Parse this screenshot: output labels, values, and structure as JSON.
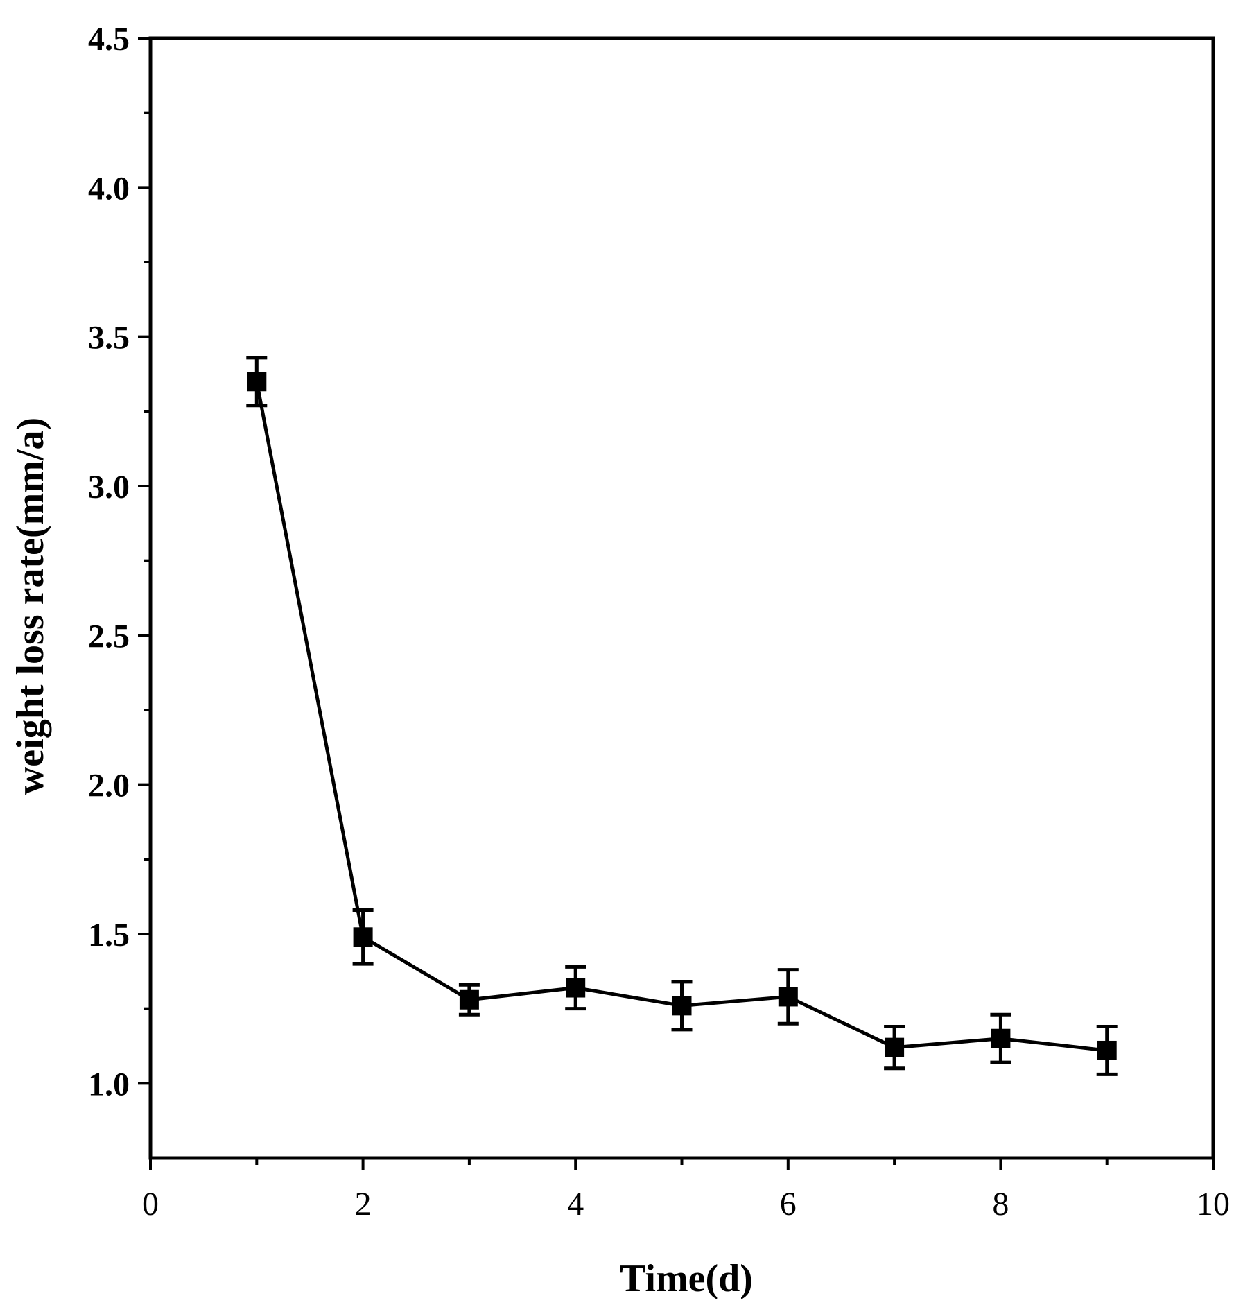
{
  "chart_data": {
    "type": "line",
    "title": "",
    "xlabel": "Time(d)",
    "ylabel": "weight loss rate(mm/a)",
    "xlim": [
      0,
      10
    ],
    "ylim": [
      0.75,
      4.5
    ],
    "x_ticks": [
      "0",
      "2",
      "4",
      "6",
      "8",
      "10"
    ],
    "x_tick_values": [
      0,
      2,
      4,
      6,
      8,
      10
    ],
    "y_ticks": [
      "1.0",
      "1.5",
      "2.0",
      "2.5",
      "3.0",
      "3.5",
      "4.0",
      "4.5"
    ],
    "y_tick_values": [
      1.0,
      1.5,
      2.0,
      2.5,
      3.0,
      3.5,
      4.0,
      4.5
    ],
    "grid": false,
    "legend": "none",
    "series": [
      {
        "name": "weight loss rate",
        "color": "#000000",
        "marker": "square",
        "x": [
          1,
          2,
          3,
          4,
          5,
          6,
          7,
          8,
          9
        ],
        "y": [
          3.35,
          1.49,
          1.28,
          1.32,
          1.26,
          1.29,
          1.12,
          1.15,
          1.11
        ],
        "error": [
          0.08,
          0.09,
          0.05,
          0.07,
          0.08,
          0.09,
          0.07,
          0.08,
          0.08
        ]
      }
    ]
  }
}
